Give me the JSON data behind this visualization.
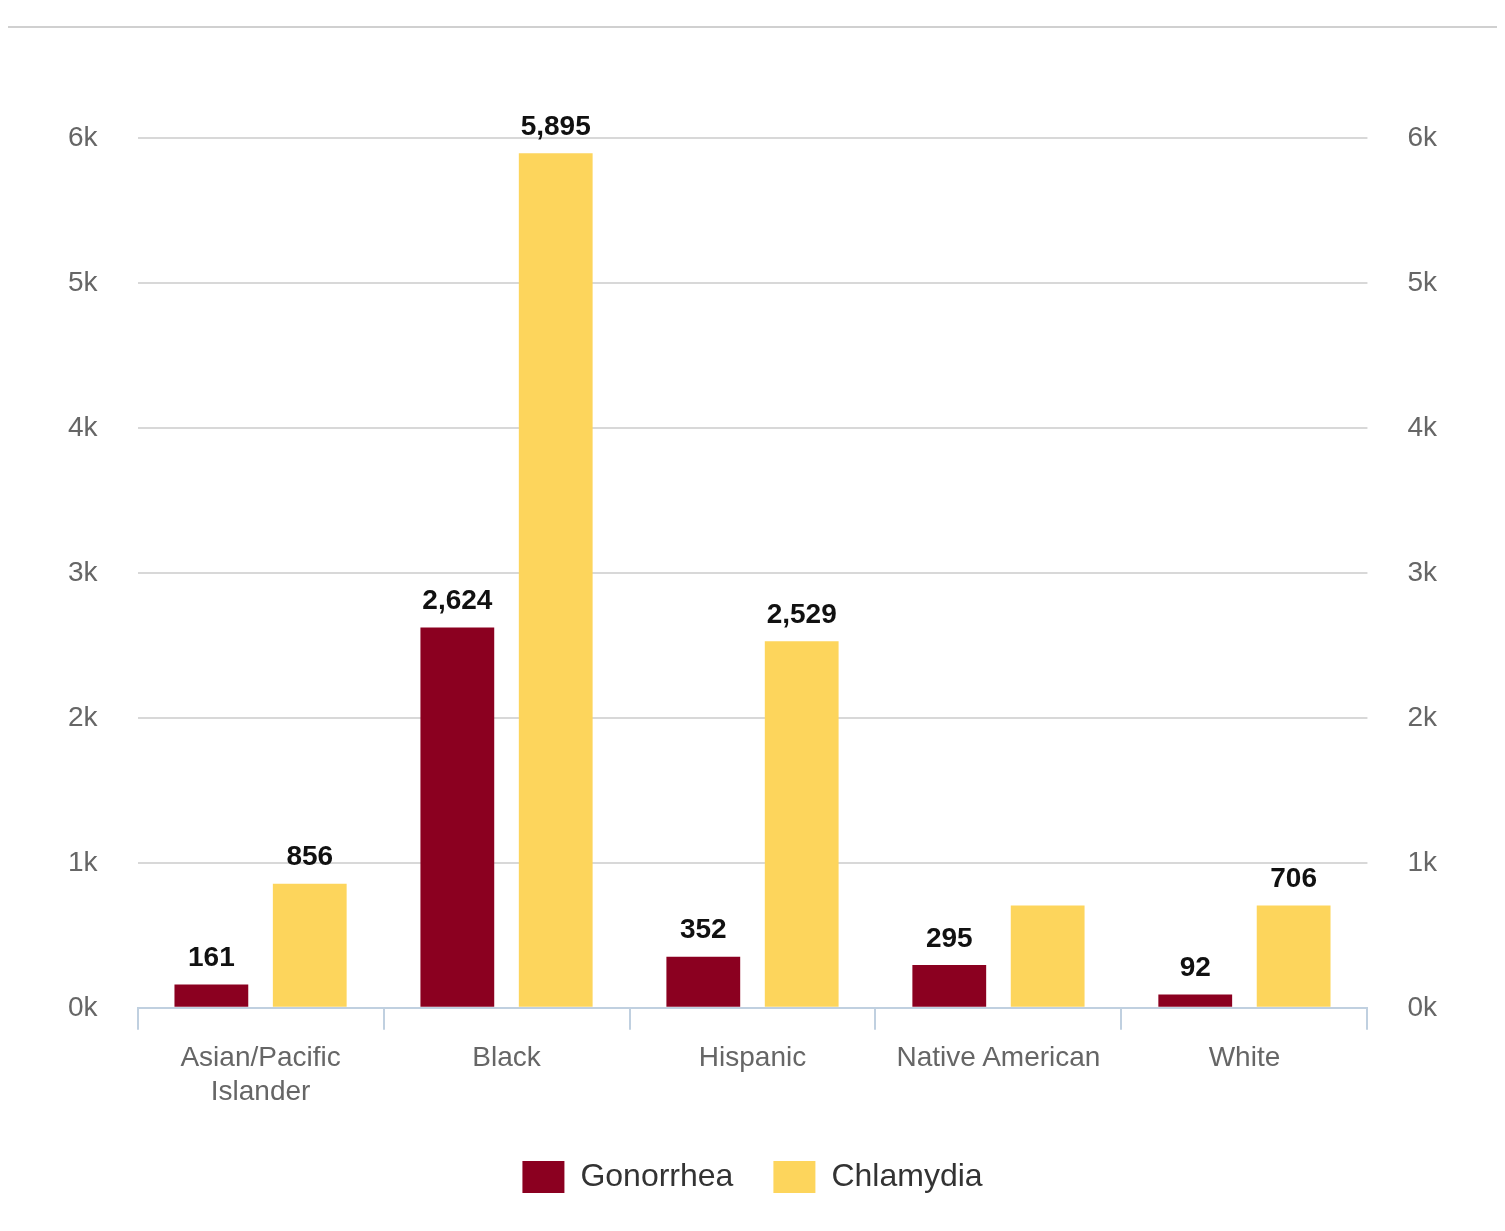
{
  "chart_data": {
    "type": "bar",
    "categories": [
      "Asian/Pacific Islander",
      "Black",
      "Hispanic",
      "Native American",
      "White"
    ],
    "series": [
      {
        "name": "Gonorrhea",
        "color": "#8b0020",
        "values": [
          161,
          2624,
          352,
          295,
          92
        ],
        "value_labels": [
          "161",
          "2,624",
          "352",
          "295",
          "92"
        ]
      },
      {
        "name": "Chlamydia",
        "color": "#fdd55c",
        "values": [
          856,
          5895,
          2529,
          706,
          706
        ],
        "value_labels": [
          "856",
          "5,895",
          "2,529",
          null,
          "706"
        ]
      }
    ],
    "ylim": [
      0,
      6000
    ],
    "yticks": [
      {
        "value": 0,
        "label": "0k"
      },
      {
        "value": 1000,
        "label": "1k"
      },
      {
        "value": 2000,
        "label": "2k"
      },
      {
        "value": 3000,
        "label": "3k"
      },
      {
        "value": 4000,
        "label": "4k"
      },
      {
        "value": 5000,
        "label": "5k"
      },
      {
        "value": 6000,
        "label": "6k"
      }
    ],
    "y2lim": [
      0,
      6000
    ],
    "y2ticks": [
      {
        "value": 0,
        "label": "0k"
      },
      {
        "value": 1000,
        "label": "1k"
      },
      {
        "value": 2000,
        "label": "2k"
      },
      {
        "value": 3000,
        "label": "3k"
      },
      {
        "value": 4000,
        "label": "4k"
      },
      {
        "value": 5000,
        "label": "5k"
      },
      {
        "value": 6000,
        "label": "6k"
      }
    ],
    "grid": "y",
    "legend": "bottom"
  }
}
